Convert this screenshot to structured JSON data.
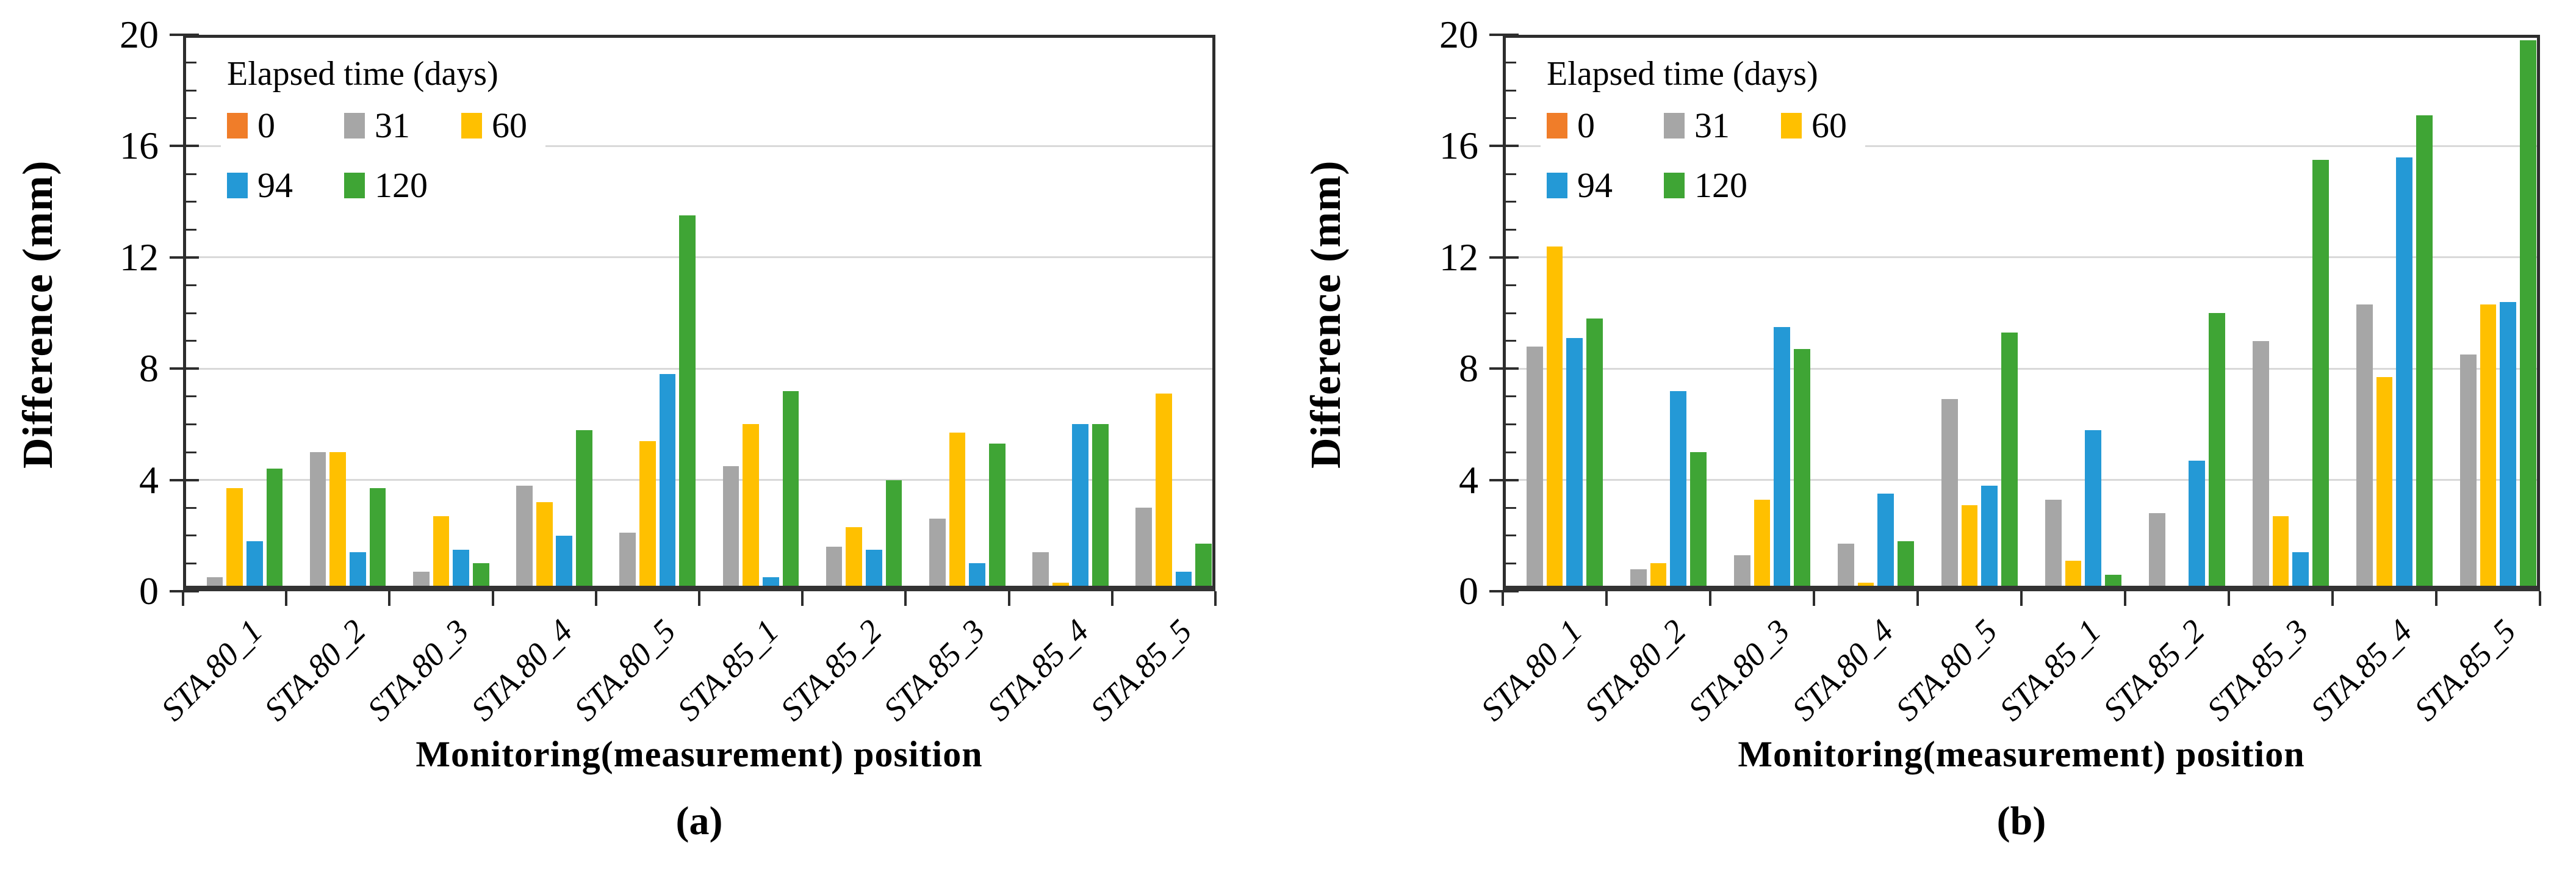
{
  "page": {
    "background": "#FFFFFF"
  },
  "palette": {
    "orange": "#F07D29",
    "gray": "#A6A6A6",
    "yellow": "#FFC000",
    "blue": "#2499D6",
    "green": "#3FA535",
    "gridline": "#D9D9D9",
    "axis": "#2D2D2D"
  },
  "chart_data": [
    {
      "type": "bar",
      "panel": "a",
      "caption": "(a)",
      "ylabel": "Difference (mm)",
      "xlabel": "Monitoring(measurement) position",
      "ylim": [
        0,
        20
      ],
      "yticks": [
        0,
        4,
        8,
        12,
        16,
        20
      ],
      "minor_tick_step": 1,
      "grid": "horizontal-major",
      "legend": {
        "title": "Elapsed time (days)",
        "position": "top-left-inside",
        "row_split": [
          3,
          2
        ]
      },
      "categories": [
        "STA.80_1",
        "STA.80_2",
        "STA.80_3",
        "STA.80_4",
        "STA.80_5",
        "STA.85_1",
        "STA.85_2",
        "STA.85_3",
        "STA.85_4",
        "STA.85_5"
      ],
      "series": [
        {
          "name": "0",
          "color": "#F07D29",
          "values": [
            0,
            0,
            0,
            0,
            0,
            0,
            0,
            0,
            0,
            0
          ]
        },
        {
          "name": "31",
          "color": "#A6A6A6",
          "values": [
            0.5,
            5.0,
            0.7,
            3.8,
            2.1,
            4.5,
            1.6,
            2.6,
            1.4,
            3.0
          ]
        },
        {
          "name": "60",
          "color": "#FFC000",
          "values": [
            3.7,
            5.0,
            2.7,
            3.2,
            5.4,
            6.0,
            2.3,
            5.7,
            0.3,
            7.1
          ]
        },
        {
          "name": "94",
          "color": "#2499D6",
          "values": [
            1.8,
            1.4,
            1.5,
            2.0,
            7.8,
            0.5,
            1.5,
            1.0,
            6.0,
            0.7
          ]
        },
        {
          "name": "120",
          "color": "#3FA535",
          "values": [
            4.4,
            3.7,
            1.0,
            5.8,
            13.5,
            7.2,
            4.0,
            5.3,
            6.0,
            1.7
          ]
        }
      ]
    },
    {
      "type": "bar",
      "panel": "b",
      "caption": "(b)",
      "ylabel": "Difference (mm)",
      "xlabel": "Monitoring(measurement) position",
      "ylim": [
        0,
        20
      ],
      "yticks": [
        0,
        4,
        8,
        12,
        16,
        20
      ],
      "minor_tick_step": 1,
      "grid": "horizontal-major",
      "legend": {
        "title": "Elapsed time (days)",
        "position": "top-left-inside",
        "row_split": [
          3,
          2
        ]
      },
      "categories": [
        "STA.80_1",
        "STA.80_2",
        "STA.80_3",
        "STA.80_4",
        "STA.80_5",
        "STA.85_1",
        "STA.85_2",
        "STA.85_3",
        "STA.85_4",
        "STA.85_5"
      ],
      "series": [
        {
          "name": "0",
          "color": "#F07D29",
          "values": [
            0,
            0,
            0,
            0,
            0,
            0,
            0,
            0,
            0,
            0
          ]
        },
        {
          "name": "31",
          "color": "#A6A6A6",
          "values": [
            8.8,
            0.8,
            1.3,
            1.7,
            6.9,
            3.3,
            2.8,
            9.0,
            10.3,
            8.5
          ]
        },
        {
          "name": "60",
          "color": "#FFC000",
          "values": [
            12.4,
            1.0,
            3.3,
            0.3,
            3.1,
            1.1,
            0.2,
            2.7,
            7.7,
            10.3
          ]
        },
        {
          "name": "94",
          "color": "#2499D6",
          "values": [
            9.1,
            7.2,
            9.5,
            3.5,
            3.8,
            5.8,
            4.7,
            1.4,
            15.6,
            10.4
          ]
        },
        {
          "name": "120",
          "color": "#3FA535",
          "values": [
            9.8,
            5.0,
            8.7,
            1.8,
            9.3,
            0.6,
            10.0,
            15.5,
            17.1,
            19.8
          ]
        }
      ]
    }
  ]
}
